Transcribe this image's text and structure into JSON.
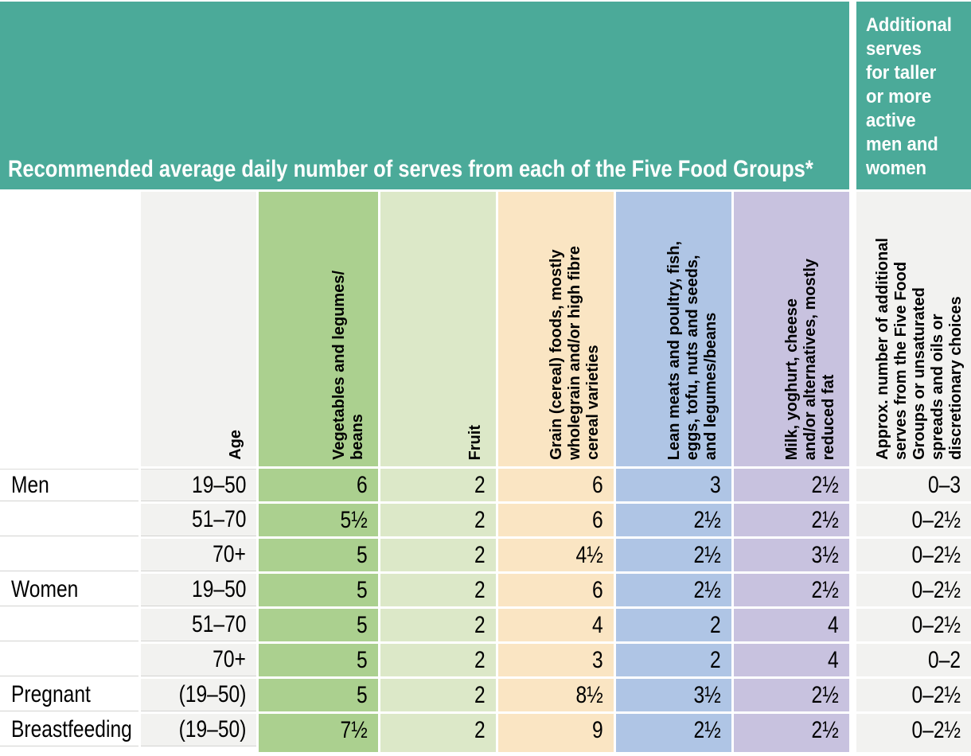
{
  "header": {
    "title": "Recommended average daily number of serves from each of the Five Food Groups*",
    "additional": "Additional\nserves\nfor taller\nor more\nactive\nmen and\nwomen"
  },
  "columns": {
    "age": "Age",
    "vegetables": "Vegetables and legumes/\nbeans",
    "fruit": "Fruit",
    "grain": "Grain (cereal) foods, mostly\nwholegrain and/or high fibre\ncereal varieties",
    "lean_meats": "Lean meats and poultry, fish,\neggs, tofu, nuts and seeds,\nand legumes/beans",
    "milk": "Milk, yoghurt, cheese\nand/or alternatives, mostly\nreduced fat",
    "additional": "Approx. number of additional\nserves from the Five Food\nGroups or unsaturated\nspreads and oils or\ndiscretionary choices"
  },
  "rows": [
    {
      "group": "Men",
      "age": "19–50",
      "vegetables": "6",
      "fruit": "2",
      "grain": "6",
      "lean_meats": "3",
      "milk": "2½",
      "additional": "0–3"
    },
    {
      "group": "",
      "age": "51–70",
      "vegetables": "5½",
      "fruit": "2",
      "grain": "6",
      "lean_meats": "2½",
      "milk": "2½",
      "additional": "0–2½"
    },
    {
      "group": "",
      "age": "70+",
      "vegetables": "5",
      "fruit": "2",
      "grain": "4½",
      "lean_meats": "2½",
      "milk": "3½",
      "additional": "0–2½"
    },
    {
      "group": "Women",
      "age": "19–50",
      "vegetables": "5",
      "fruit": "2",
      "grain": "6",
      "lean_meats": "2½",
      "milk": "2½",
      "additional": "0–2½"
    },
    {
      "group": "",
      "age": "51–70",
      "vegetables": "5",
      "fruit": "2",
      "grain": "4",
      "lean_meats": "2",
      "milk": "4",
      "additional": "0–2½"
    },
    {
      "group": "",
      "age": "70+",
      "vegetables": "5",
      "fruit": "2",
      "grain": "3",
      "lean_meats": "2",
      "milk": "4",
      "additional": "0–2"
    },
    {
      "group": "Pregnant",
      "age": "(19–50)",
      "vegetables": "5",
      "fruit": "2",
      "grain": "8½",
      "lean_meats": "3½",
      "milk": "2½",
      "additional": "0–2½"
    },
    {
      "group": "Breastfeeding",
      "age": "(19–50)",
      "vegetables": "7½",
      "fruit": "2",
      "grain": "9",
      "lean_meats": "2½",
      "milk": "2½",
      "additional": "0–2½"
    }
  ],
  "colors": {
    "teal_banner": "#4BAA99",
    "vegetables_column": "#ABD08F",
    "fruit_column": "#DCE8C8",
    "grain_column": "#FAE5C3",
    "lean_meats_column": "#AFC5E5",
    "milk_column": "#C8C2DF",
    "neutral_column": "#F2F2F0",
    "banner_text": "#FFFFFF",
    "body_text": "#000000"
  }
}
